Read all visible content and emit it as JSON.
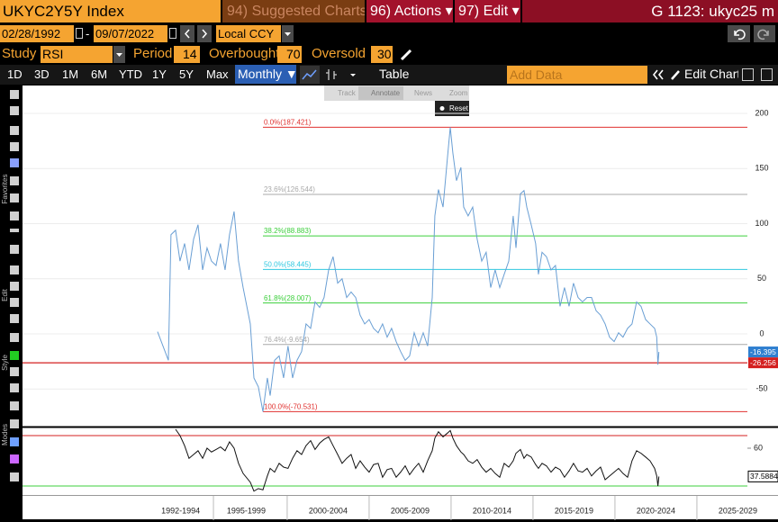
{
  "ui": {
    "security": "UKYC2Y5Y Index",
    "menu": [
      "94) Suggested Charts",
      "96) Actions ▾",
      "97) Edit ▾"
    ],
    "command": "G 1123: ukyc25 m",
    "start_date": "02/28/1992",
    "date_sep": "-",
    "end_date": "09/07/2022",
    "currency": "Local CCY",
    "study": {
      "label": "Study",
      "name": "RSI",
      "period_label": "Period",
      "period": 14,
      "overbought_label": "Overbought",
      "overbought": 70,
      "oversold_label": "Oversold",
      "oversold": 30
    },
    "periods": [
      "1D",
      "3D",
      "1M",
      "6M",
      "YTD",
      "1Y",
      "5Y",
      "Max"
    ],
    "frequency": "Monthly ▼",
    "table": "Table",
    "add_data": "Add Data",
    "edit_chart": "Edit Chart",
    "tools": [
      "Track",
      "Annotate",
      "News",
      "Zoom"
    ],
    "reset": "Reset",
    "sidebar": [
      "Favorites",
      "Edit",
      "Style",
      "Modes"
    ]
  },
  "chart_data": [
    {
      "type": "line",
      "x": [
        1992.09,
        1992.75,
        1992.91,
        1993.19,
        1993.46,
        1993.74,
        1994.01,
        1994.29,
        1994.56,
        1994.84,
        1995.11,
        1995.38,
        1995.66,
        1995.93,
        1996.21,
        1996.48,
        1996.76,
        1997.03,
        1997.31,
        1997.75,
        1997.97,
        1998.24,
        1998.52,
        1998.79,
        1998.96,
        1999.23,
        1999.51,
        1999.78,
        2000.05,
        2000.33,
        2000.6,
        2000.88,
        2001.15,
        2001.43,
        2001.7,
        2001.98,
        2002.25,
        2002.53,
        2002.8,
        2003.08,
        2003.35,
        2003.63,
        2003.9,
        2004.18,
        2004.45,
        2004.73,
        2005.0,
        2005.27,
        2005.55,
        2005.82,
        2006.1,
        2006.37,
        2006.65,
        2006.92,
        2007.2,
        2007.47,
        2007.75,
        2008.02,
        2008.3,
        2008.57,
        2008.85,
        2009.01,
        2009.23,
        2009.51,
        2009.78,
        2009.95,
        2010.11,
        2010.33,
        2010.6,
        2010.77,
        2011.04,
        2011.32,
        2011.59,
        2011.87,
        2012.14,
        2012.42,
        2012.69,
        2012.97,
        2013.24,
        2013.52,
        2013.79,
        2013.96,
        2014.23,
        2014.45,
        2014.62,
        2014.89,
        2015.16,
        2015.33,
        2015.55,
        2015.82,
        2016.1,
        2016.37,
        2016.65,
        2016.92,
        2017.2,
        2017.47,
        2017.75,
        2018.02,
        2018.3,
        2018.57,
        2018.85,
        2019.12,
        2019.4,
        2019.67,
        2019.95,
        2020.22,
        2020.49,
        2020.77,
        2021.04,
        2021.32,
        2021.59,
        2021.87,
        2022.14,
        2022.42,
        2022.55,
        2022.62,
        2022.68
      ],
      "series": [
        {
          "color": "#6a9fd4",
          "values": [
            2,
            -24,
            90,
            94,
            66,
            82,
            58,
            86,
            99,
            58,
            78,
            66,
            62,
            82,
            58,
            90,
            111,
            66,
            42,
            9,
            -40,
            -48,
            -70.531,
            -40,
            -56,
            -24,
            -20,
            -40,
            -11,
            -40,
            -24,
            -16,
            9,
            5,
            29,
            24,
            33,
            58,
            70,
            46,
            50,
            33,
            38,
            33,
            17,
            9,
            13,
            5,
            1,
            9,
            -3,
            5,
            -7,
            -16,
            -24,
            -20,
            1,
            -11,
            1,
            -11,
            33,
            107,
            131,
            115,
            160,
            187.421,
            164,
            139,
            151,
            115,
            107,
            115,
            86,
            66,
            74,
            42,
            58,
            42,
            54,
            66,
            107,
            78,
            127,
            130,
            115,
            99,
            82,
            54,
            74,
            70,
            58,
            62,
            25,
            42,
            25,
            46,
            33,
            29,
            33,
            33,
            21,
            17,
            9,
            -3,
            -7,
            1,
            -3,
            5,
            9,
            29,
            25,
            13,
            9,
            5,
            -3,
            -28,
            -16.395
          ]
        }
      ],
      "xlim": [
        1983.85,
        2028.08
      ],
      "xticks": [
        {
          "value": 1993.5,
          "label": "1992-1994"
        },
        {
          "value": 1997.5,
          "label": "1995-1999"
        },
        {
          "value": 2002.5,
          "label": "2000-2004"
        },
        {
          "value": 2007.5,
          "label": "2005-2009"
        },
        {
          "value": 2012.5,
          "label": "2010-2014"
        },
        {
          "value": 2017.5,
          "label": "2015-2019"
        },
        {
          "value": 2022.5,
          "label": "2020-2024"
        },
        {
          "value": 2027.5,
          "label": "2025-2029"
        }
      ],
      "ylim": [
        -83.3,
        225.3
      ],
      "yticks": [
        -50,
        0,
        50,
        100,
        150,
        200
      ],
      "grid": true,
      "fib_levels": [
        {
          "value": 187.421,
          "label": "0.0%(187.421)",
          "color": "#e0312f"
        },
        {
          "value": 126.544,
          "label": "23.6%(126.544)",
          "color": "#a8a8a8"
        },
        {
          "value": 88.883,
          "label": "38.2%(88.883)",
          "color": "#3ccf3c"
        },
        {
          "value": 58.445,
          "label": "50.0%(58.445)",
          "color": "#2fc8e0"
        },
        {
          "value": 28.007,
          "label": "61.8%(28.007)",
          "color": "#3ccf3c"
        },
        {
          "value": -9.654,
          "label": "76.4%(-9.654)",
          "color": "#a8a8a8"
        },
        {
          "value": -70.531,
          "label": "100.0%(-70.531)",
          "color": "#e0312f"
        }
      ],
      "reference_line": {
        "value": -26.256,
        "color": "#d42020"
      }
    },
    {
      "type": "line",
      "series": [
        {
          "color": "#111111",
          "values": [
            null,
            null,
            null,
            75,
            70,
            62,
            52,
            55,
            58,
            52,
            60,
            57,
            59,
            61,
            58,
            65,
            60,
            48,
            40,
            33,
            26,
            28,
            27,
            38,
            44,
            41,
            48,
            45,
            44,
            52,
            58,
            55,
            62,
            66,
            59,
            64,
            67,
            69,
            62,
            55,
            48,
            52,
            55,
            44,
            50,
            45,
            41,
            47,
            48,
            37,
            43,
            44,
            37,
            41,
            46,
            39,
            44,
            48,
            41,
            50,
            58,
            68,
            73,
            69,
            72,
            74,
            68,
            62,
            57,
            55,
            50,
            48,
            51,
            45,
            41,
            44,
            40,
            37,
            48,
            45,
            50,
            56,
            59,
            52,
            55,
            53,
            47,
            44,
            48,
            46,
            41,
            45,
            43,
            37,
            42,
            48,
            42,
            41,
            44,
            38,
            42,
            45,
            35,
            38,
            41,
            44,
            40,
            37,
            50,
            58,
            56,
            53,
            50,
            44,
            38,
            30,
            37.5884
          ]
        }
      ],
      "ylim": [
        22.9,
        75.7
      ],
      "yticks": [
        60
      ],
      "overbought_color": "#d42020",
      "oversold_color": "#3ccf3c"
    }
  ]
}
